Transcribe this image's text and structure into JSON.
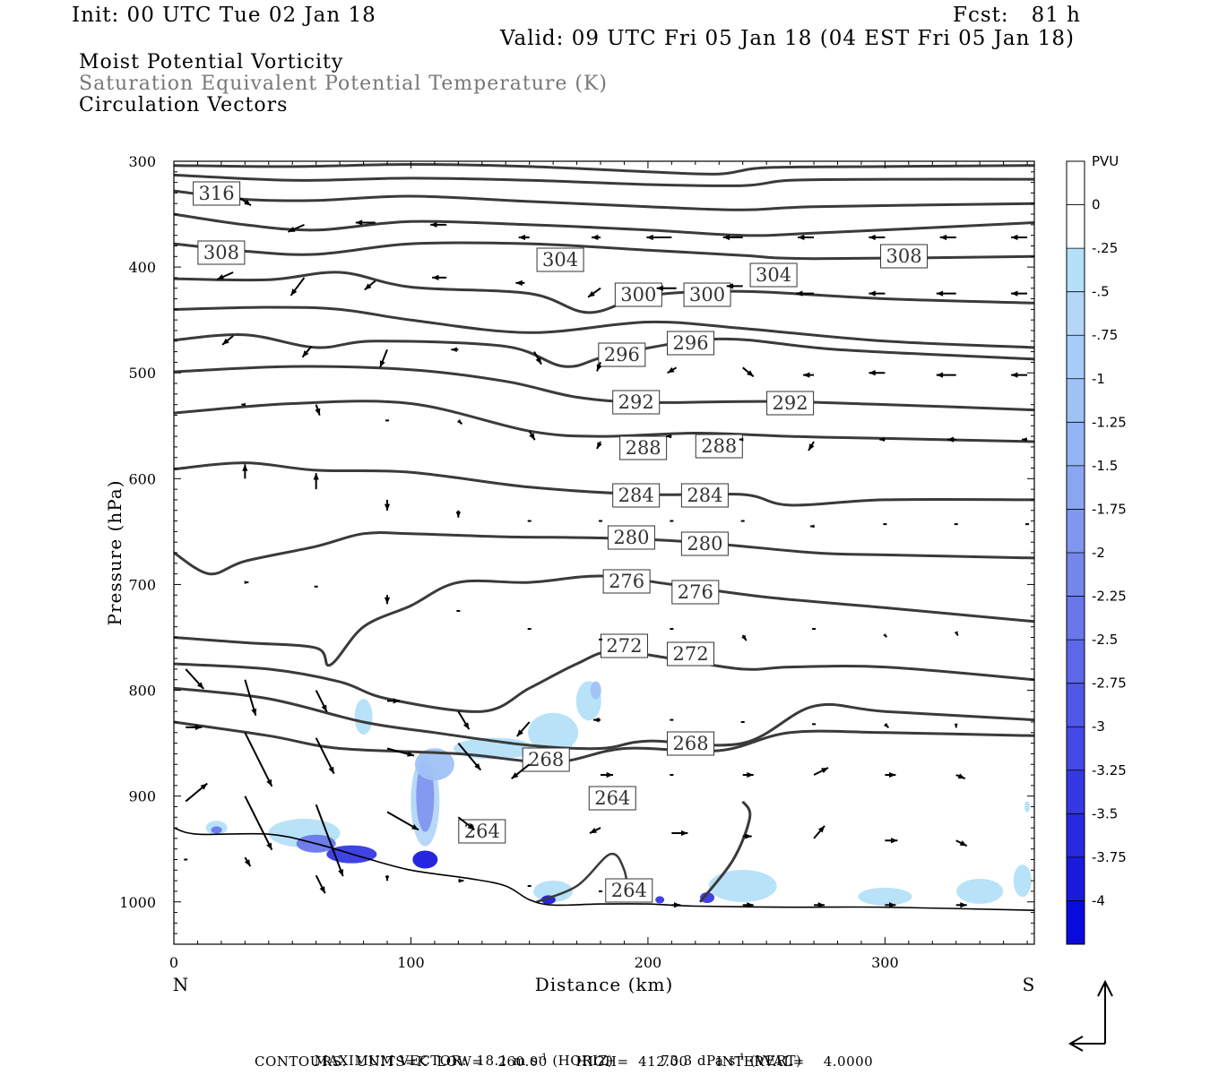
{
  "header": {
    "init": "Init: 00 UTC Tue 02 Jan 18",
    "fcst": "Fcst:   81 h",
    "valid": "Valid: 09 UTC Fri 05 Jan 18 (04 EST Fri 05 Jan 18)",
    "field1": "Moist Potential Vorticity",
    "field2": "Saturation Equivalent Potential Temperature (K)",
    "field3": "Circulation Vectors"
  },
  "footer": {
    "max_vector_prefix": "MAXIMUM VECTOR:  18.1 m s",
    "horiz": "(HORIZ)",
    "vert_prefix": "73.3 dPa s",
    "vert": "(VERT)",
    "exp": "-1",
    "contours": "CONTOURS:  UNITS=K  LOW=   260.00      HIGH=  412.00      INTERVAL=    4.0000"
  },
  "chart_data": {
    "type": "cross-section",
    "xlabel": "Distance (km)",
    "ylabel": "Pressure (hPa)",
    "x_left_label": "N",
    "x_right_label": "S",
    "xlim": [
      0,
      363
    ],
    "ylim": [
      1040,
      300
    ],
    "x_ticks": [
      0,
      100,
      200,
      300
    ],
    "y_ticks": [
      300,
      400,
      500,
      600,
      700,
      800,
      900,
      1000
    ],
    "contour_units": "K",
    "contour_color": "#3a3a3a",
    "contours": [
      {
        "value": 316,
        "label": "316",
        "points": [
          [
            0,
            304
          ],
          [
            50,
            305
          ],
          [
            100,
            303
          ],
          [
            150,
            305
          ],
          [
            200,
            310
          ],
          [
            230,
            312
          ],
          [
            250,
            306
          ],
          [
            300,
            305
          ],
          [
            363,
            304
          ]
        ]
      },
      {
        "value": 312,
        "label": "",
        "points": [
          [
            0,
            313
          ],
          [
            50,
            318
          ],
          [
            100,
            316
          ],
          [
            150,
            318
          ],
          [
            200,
            322
          ],
          [
            240,
            323
          ],
          [
            260,
            318
          ],
          [
            300,
            317
          ],
          [
            363,
            317
          ]
        ]
      },
      {
        "value": 316,
        "label": "316",
        "label_x": 18,
        "label_y": 331,
        "points": []
      },
      {
        "value": 312,
        "label": "",
        "points": [
          [
            0,
            328
          ],
          [
            30,
            336
          ],
          [
            60,
            337
          ],
          [
            100,
            333
          ],
          [
            150,
            338
          ],
          [
            200,
            343
          ],
          [
            240,
            346
          ],
          [
            270,
            343
          ],
          [
            363,
            340
          ]
        ]
      },
      {
        "value": 308,
        "label": "",
        "points": [
          [
            0,
            350
          ],
          [
            30,
            360
          ],
          [
            60,
            365
          ],
          [
            100,
            357
          ],
          [
            150,
            360
          ],
          [
            200,
            365
          ],
          [
            240,
            370
          ],
          [
            270,
            368
          ],
          [
            363,
            358
          ]
        ]
      },
      {
        "value": 308,
        "label": "308",
        "points": [
          [
            0,
            378
          ],
          [
            30,
            385
          ],
          [
            60,
            388
          ],
          [
            100,
            378
          ],
          [
            150,
            378
          ],
          [
            200,
            384
          ],
          [
            240,
            389
          ],
          [
            270,
            392
          ],
          [
            363,
            390
          ]
        ]
      },
      {
        "value": 304,
        "label": "304",
        "points": [
          [
            0,
            411
          ],
          [
            40,
            412
          ],
          [
            70,
            405
          ],
          [
            100,
            419
          ],
          [
            150,
            425
          ],
          [
            175,
            443
          ],
          [
            200,
            427
          ],
          [
            240,
            423
          ],
          [
            300,
            430
          ],
          [
            363,
            434
          ]
        ]
      },
      {
        "value": 300,
        "label": "300",
        "points": [
          [
            0,
            440
          ],
          [
            40,
            438
          ],
          [
            70,
            440
          ],
          [
            100,
            450
          ],
          [
            150,
            462
          ],
          [
            200,
            452
          ],
          [
            240,
            458
          ],
          [
            300,
            470
          ],
          [
            363,
            476
          ]
        ]
      },
      {
        "value": 296,
        "label": "296",
        "points": [
          [
            0,
            469
          ],
          [
            30,
            464
          ],
          [
            60,
            476
          ],
          [
            85,
            470
          ],
          [
            140,
            475
          ],
          [
            165,
            494
          ],
          [
            185,
            483
          ],
          [
            230,
            468
          ],
          [
            280,
            478
          ],
          [
            363,
            487
          ]
        ]
      },
      {
        "value": 292,
        "label": "292",
        "points": [
          [
            0,
            499
          ],
          [
            50,
            494
          ],
          [
            100,
            497
          ],
          [
            140,
            508
          ],
          [
            170,
            523
          ],
          [
            200,
            528
          ],
          [
            250,
            527
          ],
          [
            300,
            530
          ],
          [
            363,
            535
          ]
        ]
      },
      {
        "value": 288,
        "label": "288",
        "points": [
          [
            0,
            538
          ],
          [
            50,
            529
          ],
          [
            100,
            529
          ],
          [
            150,
            555
          ],
          [
            180,
            560
          ],
          [
            220,
            557
          ],
          [
            260,
            560
          ],
          [
            300,
            562
          ],
          [
            363,
            565
          ]
        ]
      },
      {
        "value": 284,
        "label": "284",
        "points": [
          [
            0,
            591
          ],
          [
            30,
            585
          ],
          [
            60,
            592
          ],
          [
            100,
            594
          ],
          [
            150,
            608
          ],
          [
            200,
            615
          ],
          [
            240,
            615
          ],
          [
            260,
            625
          ],
          [
            300,
            620
          ],
          [
            363,
            620
          ]
        ]
      },
      {
        "value": 280,
        "label": "280",
        "points": [
          [
            0,
            670
          ],
          [
            15,
            690
          ],
          [
            30,
            678
          ],
          [
            60,
            664
          ],
          [
            80,
            652
          ],
          [
            100,
            652
          ],
          [
            140,
            655
          ],
          [
            180,
            656
          ],
          [
            220,
            660
          ],
          [
            270,
            670
          ],
          [
            300,
            672
          ],
          [
            363,
            675
          ]
        ]
      },
      {
        "value": 276,
        "label": "276",
        "points": [
          [
            0,
            750
          ],
          [
            30,
            755
          ],
          [
            60,
            760
          ],
          [
            66,
            776
          ],
          [
            80,
            740
          ],
          [
            100,
            720
          ],
          [
            120,
            698
          ],
          [
            150,
            698
          ],
          [
            180,
            692
          ],
          [
            210,
            700
          ],
          [
            250,
            712
          ],
          [
            300,
            722
          ],
          [
            363,
            735
          ]
        ]
      },
      {
        "value": 272,
        "label": "272",
        "points": [
          [
            0,
            775
          ],
          [
            40,
            780
          ],
          [
            70,
            792
          ],
          [
            90,
            808
          ],
          [
            130,
            820
          ],
          [
            150,
            798
          ],
          [
            170,
            775
          ],
          [
            185,
            763
          ],
          [
            210,
            770
          ],
          [
            240,
            780
          ],
          [
            260,
            778
          ],
          [
            300,
            778
          ],
          [
            363,
            790
          ]
        ]
      },
      {
        "value": 268,
        "label": "268",
        "points": [
          [
            0,
            798
          ],
          [
            40,
            808
          ],
          [
            80,
            830
          ],
          [
            110,
            840
          ],
          [
            150,
            852
          ],
          [
            180,
            855
          ],
          [
            200,
            848
          ],
          [
            240,
            850
          ],
          [
            270,
            815
          ],
          [
            300,
            820
          ],
          [
            363,
            828
          ]
        ]
      },
      {
        "value": 264,
        "label": "264",
        "points": [
          [
            0,
            830
          ],
          [
            40,
            843
          ],
          [
            70,
            855
          ],
          [
            120,
            860
          ],
          [
            160,
            868
          ],
          [
            190,
            855
          ],
          [
            230,
            857
          ],
          [
            260,
            840
          ],
          [
            300,
            840
          ],
          [
            363,
            843
          ]
        ]
      }
    ],
    "circulation_vectors": "sparse vector field (see figure)",
    "pv_units": "PVU",
    "colorbar_ticks": [
      "PVU",
      "0",
      "-.25",
      "-.5",
      "-.75",
      "-1",
      "-1.25",
      "-1.5",
      "-1.75",
      "-2",
      "-2.25",
      "-2.5",
      "-2.75",
      "-3",
      "-3.25",
      "-3.5",
      "-3.75",
      "-4"
    ],
    "colorbar_colors": [
      "#ffffff",
      "#ffffff",
      "#b4e0f8",
      "#b4d6f8",
      "#a6cdf7",
      "#9fc2f5",
      "#94b5f3",
      "#8ba6f1",
      "#8196ef",
      "#7586ed",
      "#6977eb",
      "#5c67e9",
      "#4f58e7",
      "#4249e4",
      "#3539e2",
      "#2829e0",
      "#1a1adf",
      "#0a0ade"
    ]
  }
}
